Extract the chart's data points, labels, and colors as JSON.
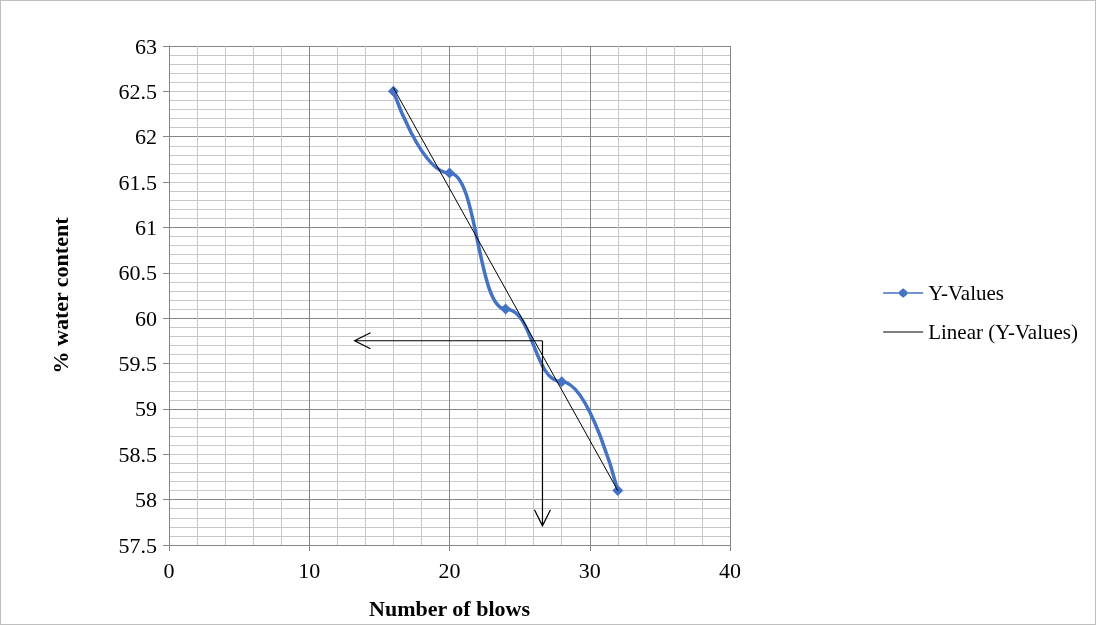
{
  "chart_data": {
    "type": "line",
    "xlabel": "Number of blows",
    "ylabel": "% water content",
    "x": [
      16,
      20,
      24,
      28,
      32
    ],
    "series": [
      {
        "name": "Y-Values",
        "color": "#4472c4",
        "values": [
          62.5,
          61.6,
          60.1,
          59.3,
          58.1
        ],
        "marker": "diamond"
      },
      {
        "name": "Linear (Y-Values)",
        "color": "#000000",
        "type": "line",
        "x": [
          16,
          32
        ],
        "values": [
          62.54,
          58.1
        ],
        "marker": "none"
      }
    ],
    "xlim": [
      0,
      40
    ],
    "xticks": [
      0,
      10,
      20,
      30,
      40
    ],
    "ylim": [
      57.5,
      63
    ],
    "yticks": [
      57.5,
      58,
      58.5,
      59,
      59.5,
      60,
      60.5,
      61,
      61.5,
      62,
      62.5,
      63
    ],
    "grid": true,
    "legend": "right"
  }
}
